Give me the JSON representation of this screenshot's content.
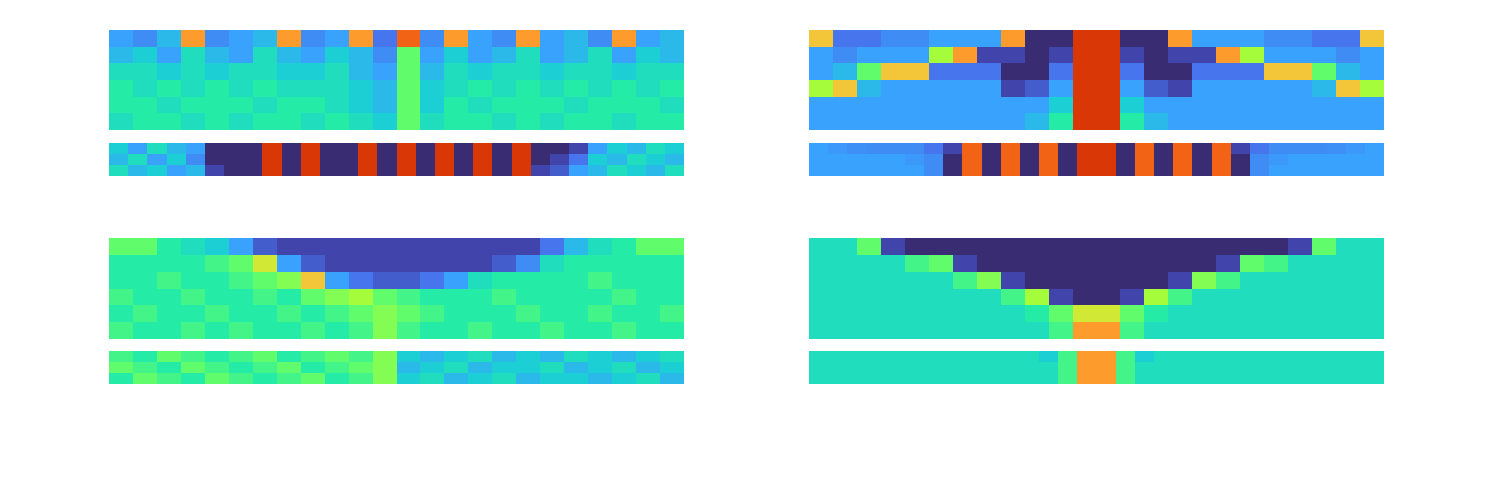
{
  "chart_data": [
    {
      "type": "heatmap",
      "zlim": [
        0,
        1
      ],
      "tick_labels": false,
      "z": [
        [
          0.3,
          0.25,
          0.35,
          0.85,
          0.25,
          0.3,
          0.35,
          0.85,
          0.25,
          0.3,
          0.85,
          0.2,
          0.9,
          0.25,
          0.85,
          0.3,
          0.25,
          0.85,
          0.3,
          0.35,
          0.25,
          0.85,
          0.3,
          0.35
        ],
        [
          0.35,
          0.4,
          0.3,
          0.45,
          0.35,
          0.3,
          0.45,
          0.35,
          0.3,
          0.4,
          0.35,
          0.25,
          0.6,
          0.3,
          0.4,
          0.3,
          0.35,
          0.45,
          0.3,
          0.35,
          0.45,
          0.3,
          0.4,
          0.35
        ],
        [
          0.45,
          0.45,
          0.4,
          0.45,
          0.4,
          0.45,
          0.45,
          0.4,
          0.4,
          0.45,
          0.35,
          0.3,
          0.6,
          0.35,
          0.45,
          0.4,
          0.45,
          0.45,
          0.4,
          0.45,
          0.45,
          0.4,
          0.45,
          0.45
        ],
        [
          0.5,
          0.45,
          0.5,
          0.45,
          0.5,
          0.45,
          0.5,
          0.45,
          0.45,
          0.45,
          0.4,
          0.35,
          0.6,
          0.4,
          0.45,
          0.5,
          0.45,
          0.5,
          0.45,
          0.5,
          0.45,
          0.5,
          0.45,
          0.5
        ],
        [
          0.5,
          0.5,
          0.45,
          0.5,
          0.5,
          0.5,
          0.45,
          0.5,
          0.5,
          0.45,
          0.4,
          0.35,
          0.6,
          0.4,
          0.5,
          0.45,
          0.5,
          0.5,
          0.5,
          0.45,
          0.5,
          0.5,
          0.5,
          0.45
        ],
        [
          0.45,
          0.5,
          0.5,
          0.45,
          0.5,
          0.45,
          0.5,
          0.5,
          0.45,
          0.5,
          0.45,
          0.4,
          0.6,
          0.45,
          0.5,
          0.5,
          0.45,
          0.5,
          0.45,
          0.5,
          0.5,
          0.45,
          0.5,
          0.5
        ]
      ]
    },
    {
      "type": "heatmap",
      "zlim": [
        0,
        1
      ],
      "tick_labels": false,
      "z": [
        [
          0.4,
          0.3,
          0.45,
          0.35,
          0.3,
          0.05,
          0.05,
          0.05,
          0.95,
          0.05,
          0.95,
          0.05,
          0.05,
          0.95,
          0.05,
          0.95,
          0.05,
          0.95,
          0.05,
          0.95,
          0.05,
          0.95,
          0.05,
          0.05,
          0.1,
          0.3,
          0.4,
          0.35,
          0.45,
          0.4
        ],
        [
          0.35,
          0.45,
          0.3,
          0.4,
          0.25,
          0.05,
          0.05,
          0.05,
          0.95,
          0.05,
          0.95,
          0.05,
          0.05,
          0.95,
          0.05,
          0.95,
          0.05,
          0.95,
          0.05,
          0.95,
          0.05,
          0.95,
          0.05,
          0.1,
          0.2,
          0.4,
          0.35,
          0.45,
          0.4,
          0.35
        ],
        [
          0.45,
          0.35,
          0.4,
          0.3,
          0.35,
          0.1,
          0.05,
          0.05,
          0.95,
          0.05,
          0.95,
          0.05,
          0.05,
          0.95,
          0.05,
          0.95,
          0.05,
          0.95,
          0.05,
          0.95,
          0.05,
          0.95,
          0.1,
          0.15,
          0.3,
          0.35,
          0.45,
          0.4,
          0.35,
          0.45
        ]
      ]
    },
    {
      "type": "heatmap",
      "zlim": [
        0,
        1
      ],
      "tick_labels": false,
      "z": [
        [
          0.8,
          0.2,
          0.2,
          0.25,
          0.25,
          0.3,
          0.3,
          0.3,
          0.85,
          0.05,
          0.05,
          0.95,
          0.95,
          0.05,
          0.05,
          0.85,
          0.3,
          0.3,
          0.3,
          0.25,
          0.25,
          0.2,
          0.2,
          0.8
        ],
        [
          0.3,
          0.25,
          0.3,
          0.3,
          0.3,
          0.7,
          0.85,
          0.1,
          0.1,
          0.05,
          0.1,
          0.95,
          0.95,
          0.1,
          0.05,
          0.1,
          0.1,
          0.85,
          0.7,
          0.3,
          0.3,
          0.3,
          0.25,
          0.3
        ],
        [
          0.3,
          0.35,
          0.6,
          0.8,
          0.8,
          0.2,
          0.2,
          0.2,
          0.05,
          0.05,
          0.2,
          0.95,
          0.95,
          0.2,
          0.05,
          0.05,
          0.2,
          0.2,
          0.2,
          0.8,
          0.8,
          0.6,
          0.35,
          0.3
        ],
        [
          0.7,
          0.8,
          0.35,
          0.3,
          0.3,
          0.3,
          0.3,
          0.3,
          0.1,
          0.15,
          0.3,
          0.95,
          0.95,
          0.3,
          0.15,
          0.1,
          0.3,
          0.3,
          0.3,
          0.3,
          0.3,
          0.35,
          0.8,
          0.7
        ],
        [
          0.3,
          0.3,
          0.3,
          0.3,
          0.3,
          0.3,
          0.3,
          0.3,
          0.3,
          0.3,
          0.4,
          0.95,
          0.95,
          0.4,
          0.3,
          0.3,
          0.3,
          0.3,
          0.3,
          0.3,
          0.3,
          0.3,
          0.3,
          0.3
        ],
        [
          0.3,
          0.3,
          0.3,
          0.3,
          0.3,
          0.3,
          0.3,
          0.3,
          0.3,
          0.35,
          0.5,
          0.95,
          0.95,
          0.5,
          0.35,
          0.3,
          0.3,
          0.3,
          0.3,
          0.3,
          0.3,
          0.3,
          0.3,
          0.3
        ]
      ]
    },
    {
      "type": "heatmap",
      "zlim": [
        0,
        1
      ],
      "tick_labels": false,
      "z": [
        [
          0.3,
          0.28,
          0.26,
          0.25,
          0.25,
          0.25,
          0.2,
          0.1,
          0.9,
          0.05,
          0.9,
          0.05,
          0.9,
          0.05,
          0.95,
          0.95,
          0.05,
          0.9,
          0.05,
          0.9,
          0.05,
          0.9,
          0.1,
          0.2,
          0.25,
          0.25,
          0.25,
          0.26,
          0.28,
          0.3
        ],
        [
          0.3,
          0.3,
          0.3,
          0.3,
          0.3,
          0.28,
          0.25,
          0.05,
          0.9,
          0.05,
          0.9,
          0.05,
          0.9,
          0.05,
          0.95,
          0.95,
          0.05,
          0.9,
          0.05,
          0.9,
          0.05,
          0.9,
          0.05,
          0.25,
          0.28,
          0.3,
          0.3,
          0.3,
          0.3,
          0.3
        ],
        [
          0.3,
          0.3,
          0.3,
          0.3,
          0.3,
          0.3,
          0.25,
          0.05,
          0.9,
          0.05,
          0.9,
          0.05,
          0.9,
          0.05,
          0.95,
          0.95,
          0.05,
          0.9,
          0.05,
          0.9,
          0.05,
          0.9,
          0.05,
          0.25,
          0.3,
          0.3,
          0.3,
          0.3,
          0.3,
          0.3
        ]
      ]
    },
    {
      "type": "heatmap",
      "zlim": [
        0,
        1
      ],
      "tick_labels": false,
      "z": [
        [
          0.6,
          0.6,
          0.5,
          0.45,
          0.4,
          0.3,
          0.15,
          0.1,
          0.1,
          0.1,
          0.1,
          0.1,
          0.1,
          0.1,
          0.1,
          0.1,
          0.1,
          0.1,
          0.2,
          0.35,
          0.45,
          0.5,
          0.6,
          0.6
        ],
        [
          0.5,
          0.5,
          0.5,
          0.5,
          0.55,
          0.6,
          0.75,
          0.3,
          0.15,
          0.1,
          0.1,
          0.1,
          0.1,
          0.1,
          0.1,
          0.1,
          0.15,
          0.25,
          0.45,
          0.5,
          0.5,
          0.5,
          0.5,
          0.5
        ],
        [
          0.5,
          0.5,
          0.55,
          0.5,
          0.5,
          0.55,
          0.6,
          0.65,
          0.8,
          0.3,
          0.2,
          0.15,
          0.15,
          0.2,
          0.3,
          0.45,
          0.5,
          0.5,
          0.5,
          0.5,
          0.55,
          0.5,
          0.5,
          0.5
        ],
        [
          0.55,
          0.5,
          0.5,
          0.55,
          0.5,
          0.5,
          0.55,
          0.5,
          0.6,
          0.65,
          0.7,
          0.6,
          0.55,
          0.5,
          0.5,
          0.5,
          0.55,
          0.5,
          0.5,
          0.5,
          0.5,
          0.55,
          0.5,
          0.5
        ],
        [
          0.5,
          0.55,
          0.5,
          0.5,
          0.55,
          0.5,
          0.5,
          0.55,
          0.5,
          0.55,
          0.6,
          0.65,
          0.6,
          0.55,
          0.5,
          0.5,
          0.5,
          0.55,
          0.5,
          0.5,
          0.55,
          0.5,
          0.5,
          0.55
        ],
        [
          0.55,
          0.5,
          0.5,
          0.55,
          0.5,
          0.55,
          0.5,
          0.5,
          0.55,
          0.5,
          0.55,
          0.65,
          0.55,
          0.5,
          0.5,
          0.55,
          0.5,
          0.5,
          0.55,
          0.5,
          0.5,
          0.55,
          0.5,
          0.5
        ]
      ]
    },
    {
      "type": "heatmap",
      "zlim": [
        0,
        1
      ],
      "tick_labels": false,
      "z": [
        [
          0.55,
          0.5,
          0.6,
          0.55,
          0.5,
          0.55,
          0.6,
          0.5,
          0.55,
          0.6,
          0.55,
          0.65,
          0.4,
          0.35,
          0.4,
          0.45,
          0.35,
          0.4,
          0.35,
          0.45,
          0.4,
          0.35,
          0.4,
          0.45
        ],
        [
          0.6,
          0.55,
          0.5,
          0.6,
          0.55,
          0.5,
          0.55,
          0.6,
          0.5,
          0.55,
          0.6,
          0.65,
          0.35,
          0.4,
          0.45,
          0.35,
          0.4,
          0.4,
          0.45,
          0.35,
          0.4,
          0.45,
          0.35,
          0.4
        ],
        [
          0.5,
          0.6,
          0.55,
          0.5,
          0.6,
          0.55,
          0.5,
          0.55,
          0.6,
          0.5,
          0.55,
          0.65,
          0.4,
          0.45,
          0.35,
          0.4,
          0.45,
          0.35,
          0.4,
          0.4,
          0.35,
          0.4,
          0.45,
          0.35
        ]
      ]
    },
    {
      "type": "heatmap",
      "zlim": [
        0,
        1
      ],
      "tick_labels": false,
      "z": [
        [
          0.45,
          0.45,
          0.6,
          0.1,
          0.05,
          0.05,
          0.05,
          0.05,
          0.05,
          0.05,
          0.05,
          0.05,
          0.05,
          0.05,
          0.05,
          0.05,
          0.05,
          0.05,
          0.05,
          0.05,
          0.1,
          0.6,
          0.45,
          0.45
        ],
        [
          0.45,
          0.45,
          0.45,
          0.45,
          0.55,
          0.6,
          0.1,
          0.05,
          0.05,
          0.05,
          0.05,
          0.05,
          0.05,
          0.05,
          0.05,
          0.05,
          0.05,
          0.1,
          0.6,
          0.55,
          0.45,
          0.45,
          0.45,
          0.45
        ],
        [
          0.45,
          0.45,
          0.45,
          0.45,
          0.45,
          0.45,
          0.55,
          0.65,
          0.1,
          0.05,
          0.05,
          0.05,
          0.05,
          0.05,
          0.05,
          0.1,
          0.65,
          0.55,
          0.45,
          0.45,
          0.45,
          0.45,
          0.45,
          0.45
        ],
        [
          0.45,
          0.45,
          0.45,
          0.45,
          0.45,
          0.45,
          0.45,
          0.45,
          0.55,
          0.7,
          0.1,
          0.05,
          0.05,
          0.1,
          0.7,
          0.55,
          0.45,
          0.45,
          0.45,
          0.45,
          0.45,
          0.45,
          0.45,
          0.45
        ],
        [
          0.45,
          0.45,
          0.45,
          0.45,
          0.45,
          0.45,
          0.45,
          0.45,
          0.45,
          0.5,
          0.6,
          0.75,
          0.75,
          0.6,
          0.5,
          0.45,
          0.45,
          0.45,
          0.45,
          0.45,
          0.45,
          0.45,
          0.45,
          0.45
        ],
        [
          0.45,
          0.45,
          0.45,
          0.45,
          0.45,
          0.45,
          0.45,
          0.45,
          0.45,
          0.45,
          0.55,
          0.85,
          0.85,
          0.55,
          0.45,
          0.45,
          0.45,
          0.45,
          0.45,
          0.45,
          0.45,
          0.45,
          0.45,
          0.45
        ]
      ]
    },
    {
      "type": "heatmap",
      "zlim": [
        0,
        1
      ],
      "tick_labels": false,
      "z": [
        [
          0.45,
          0.45,
          0.45,
          0.45,
          0.45,
          0.45,
          0.45,
          0.45,
          0.45,
          0.45,
          0.45,
          0.45,
          0.4,
          0.55,
          0.85,
          0.85,
          0.55,
          0.4,
          0.45,
          0.45,
          0.45,
          0.45,
          0.45,
          0.45,
          0.45,
          0.45,
          0.45,
          0.45,
          0.45,
          0.45
        ],
        [
          0.45,
          0.45,
          0.45,
          0.45,
          0.45,
          0.45,
          0.45,
          0.45,
          0.45,
          0.45,
          0.45,
          0.45,
          0.45,
          0.55,
          0.85,
          0.85,
          0.55,
          0.45,
          0.45,
          0.45,
          0.45,
          0.45,
          0.45,
          0.45,
          0.45,
          0.45,
          0.45,
          0.45,
          0.45,
          0.45
        ],
        [
          0.45,
          0.45,
          0.45,
          0.45,
          0.45,
          0.45,
          0.45,
          0.45,
          0.45,
          0.45,
          0.45,
          0.45,
          0.45,
          0.55,
          0.85,
          0.85,
          0.55,
          0.45,
          0.45,
          0.45,
          0.45,
          0.45,
          0.45,
          0.45,
          0.45,
          0.45,
          0.45,
          0.45,
          0.45,
          0.45
        ]
      ]
    }
  ]
}
